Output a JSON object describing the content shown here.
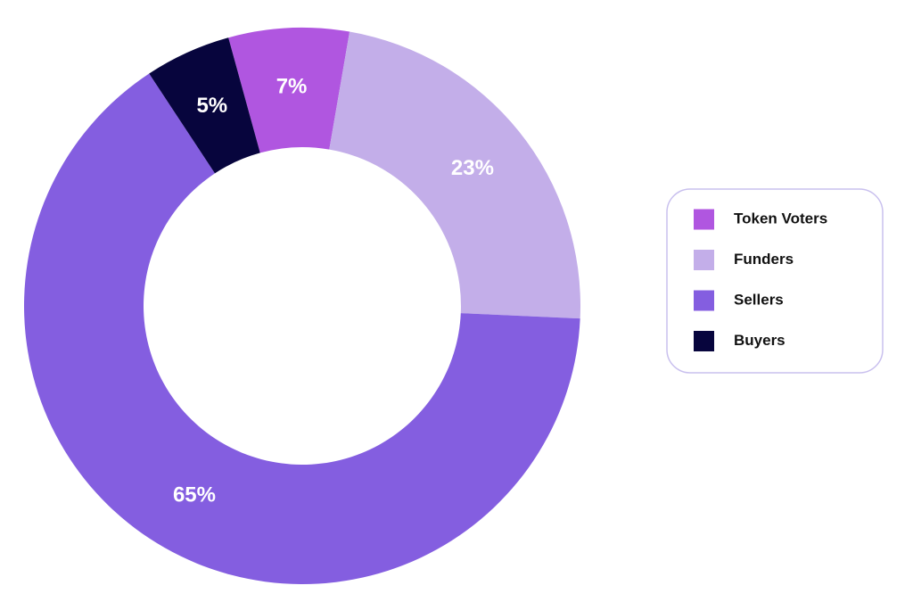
{
  "chart_data": {
    "type": "pie",
    "categories": [
      "Token Voters",
      "Funders",
      "Sellers",
      "Buyers"
    ],
    "values": [
      7,
      23,
      65,
      5
    ],
    "value_labels": [
      "7%",
      "23%",
      "65%",
      "5%"
    ],
    "colors": [
      "#b056e0",
      "#c3aee9",
      "#845ee0",
      "#07053d"
    ],
    "legend": "right"
  }
}
